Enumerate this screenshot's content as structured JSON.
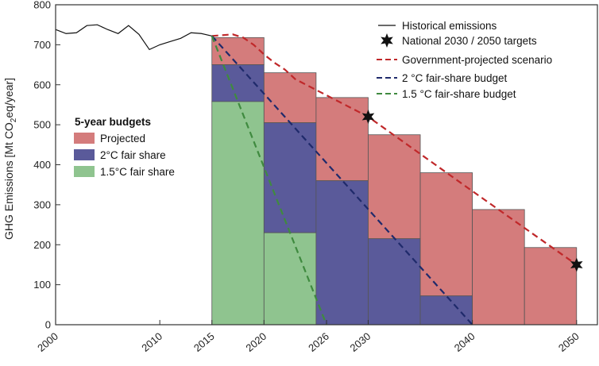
{
  "chart_data": {
    "type": "bar",
    "xlabel": "",
    "ylabel_main": "GHG Emissions [Mt CO",
    "ylabel_sub": "2",
    "ylabel_tail": "eq/year]",
    "xlim": [
      2000,
      2052
    ],
    "ylim": [
      0,
      800
    ],
    "yticks": [
      "0",
      "100",
      "200",
      "300",
      "400",
      "500",
      "600",
      "700",
      "800"
    ],
    "xticks": [
      {
        "x": 2000,
        "label": "2000"
      },
      {
        "x": 2010,
        "label": "2010"
      },
      {
        "x": 2015,
        "label": "2015"
      },
      {
        "x": 2020,
        "label": "2020"
      },
      {
        "x": 2026,
        "label": "2026"
      },
      {
        "x": 2030,
        "label": "2030"
      },
      {
        "x": 2040,
        "label": "2040"
      },
      {
        "x": 2050,
        "label": "2050"
      }
    ],
    "colors": {
      "projected": "#d47c7c",
      "two_deg": "#5a5a9a",
      "one_five_deg": "#8fc48f",
      "historical": "#111111",
      "gov_line": "#c0282a",
      "two_line": "#1f2a6b",
      "one_five_line": "#3f8a3f",
      "bar_edge": "#555555"
    },
    "bars": [
      {
        "x0": 2015,
        "x1": 2020,
        "projected": 718,
        "two_deg": 650,
        "one_five_deg": 558
      },
      {
        "x0": 2020,
        "x1": 2025,
        "projected": 630,
        "two_deg": 505,
        "one_five_deg": 230
      },
      {
        "x0": 2025,
        "x1": 2030,
        "projected": 568,
        "two_deg": 360,
        "one_five_deg": 0
      },
      {
        "x0": 2030,
        "x1": 2035,
        "projected": 475,
        "two_deg": 215,
        "one_five_deg": 0
      },
      {
        "x0": 2035,
        "x1": 2040,
        "projected": 380,
        "two_deg": 72,
        "one_five_deg": 0
      },
      {
        "x0": 2040,
        "x1": 2045,
        "projected": 288,
        "two_deg": 0,
        "one_five_deg": 0
      },
      {
        "x0": 2045,
        "x1": 2050,
        "projected": 193,
        "two_deg": 0,
        "one_five_deg": 0
      }
    ],
    "historical": {
      "x": [
        2000,
        2001,
        2002,
        2003,
        2004,
        2005,
        2006,
        2007,
        2008,
        2009,
        2010,
        2011,
        2012,
        2013,
        2014,
        2015
      ],
      "y": [
        738,
        728,
        730,
        748,
        750,
        738,
        728,
        748,
        726,
        688,
        700,
        708,
        716,
        730,
        728,
        722
      ]
    },
    "series": [
      {
        "name": "Government-projected scenario",
        "x": [
          2015,
          2017,
          2018,
          2019,
          2020,
          2021,
          2022,
          2023,
          2030,
          2040,
          2050
        ],
        "y": [
          722,
          726,
          718,
          700,
          676,
          655,
          638,
          614,
          520,
          334,
          150
        ]
      },
      {
        "name": "2 °C fair-share budget",
        "x": [
          2015,
          2040
        ],
        "y": [
          722,
          0
        ]
      },
      {
        "name": "1.5 °C fair-share budget",
        "x": [
          2015,
          2026
        ],
        "y": [
          722,
          0
        ]
      }
    ],
    "targets": [
      {
        "x": 2030,
        "y": 520
      },
      {
        "x": 2050,
        "y": 150
      }
    ],
    "legend_lines": {
      "historical": "Historical emissions",
      "targets": "National 2030 / 2050 targets",
      "gov": "Government-projected scenario",
      "two": "2 °C fair-share budget",
      "one_five": "1.5 °C fair-share budget"
    },
    "legend_budgets": {
      "title": "5-year budgets",
      "projected": "Projected",
      "two": "2°C fair share",
      "one_five": "1.5°C fair share"
    },
    "grid": false
  }
}
